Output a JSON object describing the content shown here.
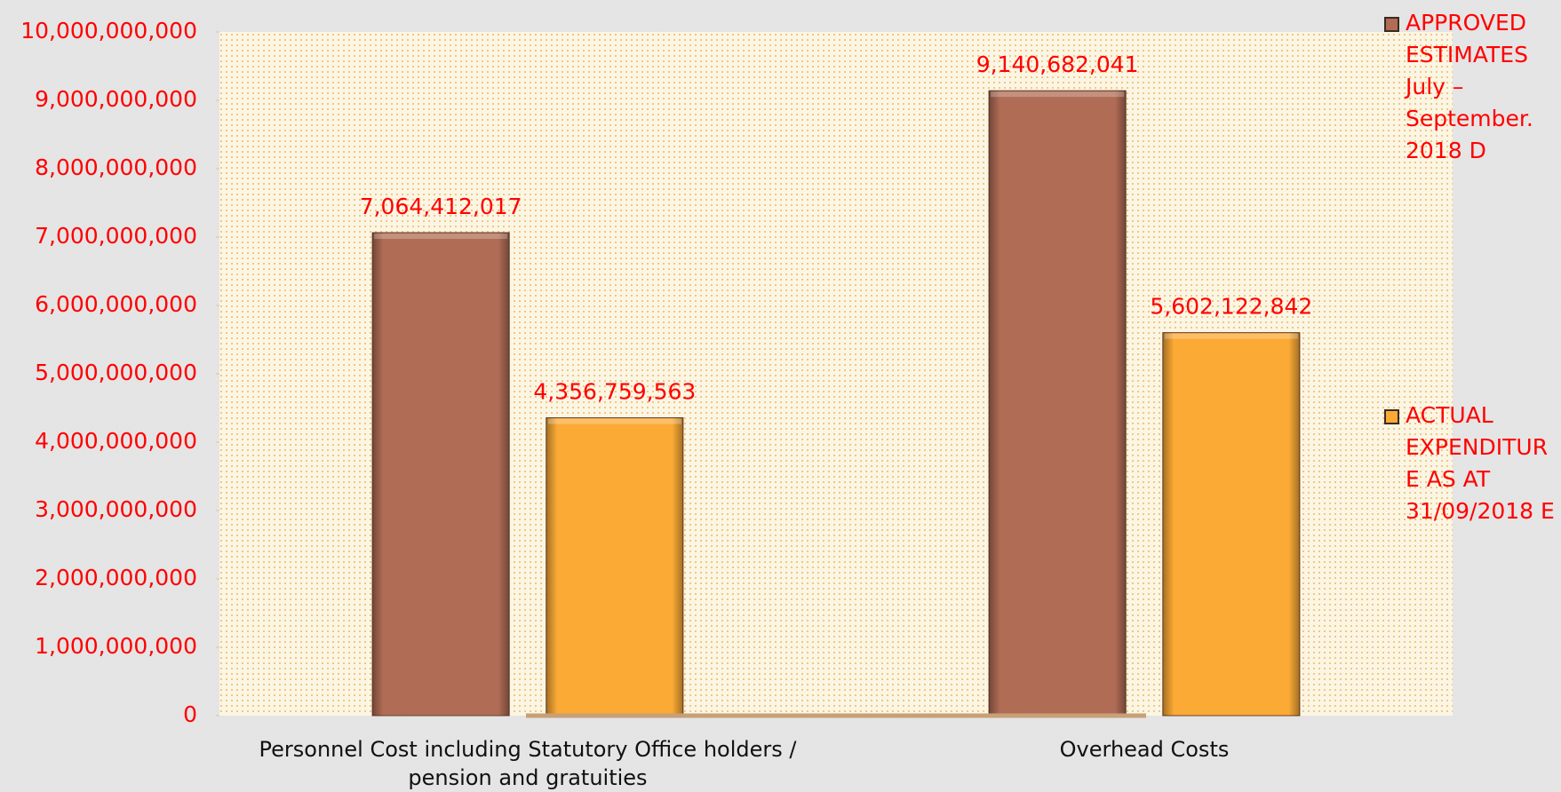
{
  "chart_data": {
    "type": "bar",
    "categories": [
      "Personnel Cost including Statutory Office holders / pension and gratuities",
      "Overhead Costs"
    ],
    "series": [
      {
        "name": "APPROVED ESTIMATES July – September. 2018 D",
        "color": "#b06c55",
        "values": [
          7064412017,
          9140682041
        ],
        "value_labels": [
          "7,064,412,017",
          "9,140,682,041"
        ]
      },
      {
        "name": "ACTUAL EXPENDITURE  AS AT 31/09/2018 E",
        "color": "#fbaa35",
        "values": [
          4356759563,
          5602122842
        ],
        "value_labels": [
          "4,356,759,563",
          "5,602,122,842"
        ]
      }
    ],
    "ylim": [
      0,
      10000000000
    ],
    "yticks": [
      0,
      {
        "value": 1000000000,
        "label": "1,000,000,000"
      },
      {
        "value": 2000000000,
        "label": "2,000,000,000"
      },
      {
        "value": 3000000000,
        "label": "3,000,000,000"
      },
      {
        "value": 4000000000,
        "label": "4,000,000,000"
      },
      {
        "value": 5000000000,
        "label": "5,000,000,000"
      },
      {
        "value": 6000000000,
        "label": "6,000,000,000"
      },
      {
        "value": 7000000000,
        "label": "7,000,000,000"
      },
      {
        "value": 8000000000,
        "label": "8,000,000,000"
      },
      {
        "value": 9000000000,
        "label": "9,000,000,000"
      },
      {
        "value": 10000000000,
        "label": "10,000,000,000"
      }
    ],
    "legend": "right"
  }
}
